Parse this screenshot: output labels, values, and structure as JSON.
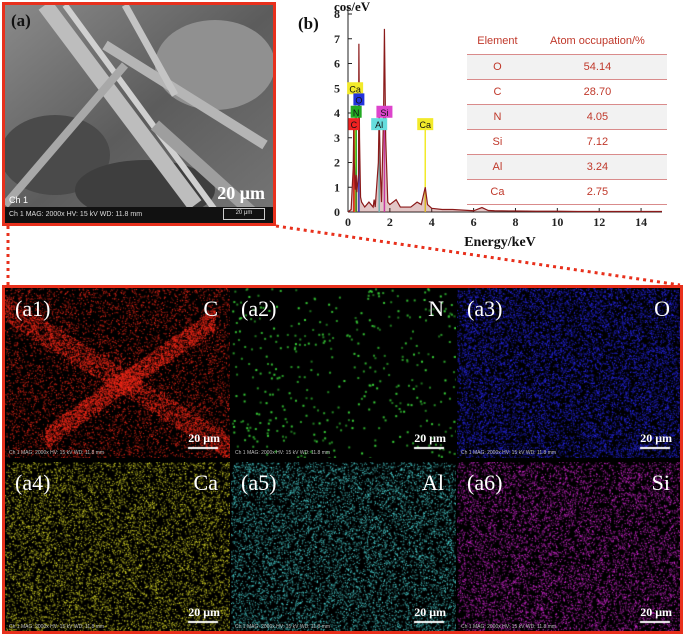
{
  "sem": {
    "label": "(a)",
    "scale_label": "20 μm",
    "channel_label": "Ch 1",
    "info_text": "Ch 1   MAG: 2000x   HV: 15 kV   WD: 11.8 mm",
    "scale_box_text": "20 μm",
    "frame_color": "#e8301c"
  },
  "chart_data": {
    "type": "line",
    "panel_label": "(b)",
    "title": "",
    "xlabel": "Energy/keV",
    "ylabel": "cos/eV",
    "xlim": [
      0,
      15
    ],
    "ylim": [
      0,
      8
    ],
    "xticks": [
      0,
      2,
      4,
      6,
      8,
      10,
      12,
      14
    ],
    "yticks": [
      0,
      1,
      2,
      3,
      4,
      5,
      6,
      7,
      8
    ],
    "grid": false,
    "line_color": "#8b1a1a",
    "series": [
      {
        "x": [
          0,
          0.15,
          0.25,
          0.28,
          0.3,
          0.35,
          0.39,
          0.42,
          0.5,
          0.52,
          0.55,
          0.6,
          0.65,
          0.8,
          1.0,
          1.2,
          1.25,
          1.3,
          1.45,
          1.49,
          1.55,
          1.6,
          1.7,
          1.74,
          1.8,
          1.9,
          2.0,
          2.3,
          2.5,
          3.0,
          3.3,
          3.5,
          3.69,
          3.8,
          4.0,
          4.5,
          5.0,
          6.0,
          6.4,
          6.7,
          7.0,
          8.0,
          9.0,
          10.0,
          11.0,
          12.0,
          13.0,
          14.0,
          15.0
        ],
        "y": [
          0,
          0.1,
          1.8,
          3.6,
          2.0,
          0.9,
          1.5,
          0.8,
          1.5,
          6.8,
          3.0,
          0.6,
          0.4,
          0.2,
          0.4,
          0.2,
          0.5,
          0.2,
          2.0,
          4.1,
          1.5,
          0.4,
          4.0,
          7.4,
          3.0,
          0.4,
          0.3,
          0.5,
          0.2,
          0.2,
          0.4,
          0.3,
          1.0,
          0.3,
          0.15,
          0.1,
          0.1,
          0.05,
          0.18,
          0.06,
          0.05,
          0.04,
          0.03,
          0.03,
          0.02,
          0.02,
          0.02,
          0.02,
          0.02
        ]
      }
    ],
    "peak_markers": [
      {
        "element": "Ca",
        "x": 0.34,
        "y_top": 4.9,
        "label_y": 5.0,
        "color": "#f2ea2a"
      },
      {
        "element": "O",
        "x": 0.52,
        "y_top": 4.4,
        "label_y": 4.55,
        "color": "#2233dd"
      },
      {
        "element": "N",
        "x": 0.39,
        "y_top": 3.9,
        "label_y": 4.05,
        "color": "#22aa22"
      },
      {
        "element": "C",
        "x": 0.28,
        "y_top": 3.4,
        "label_y": 3.55,
        "color": "#ee2222"
      },
      {
        "element": "Al",
        "x": 1.49,
        "y_top": 3.4,
        "label_y": 3.55,
        "color": "#66dddd"
      },
      {
        "element": "Si",
        "x": 1.74,
        "y_top": 3.9,
        "label_y": 4.05,
        "color": "#dd44cc"
      },
      {
        "element": "Ca",
        "x": 3.69,
        "y_top": 3.4,
        "label_y": 3.55,
        "color": "#f2ea2a"
      }
    ],
    "table": {
      "headers": [
        "Element",
        "Atom occupation/%"
      ],
      "rows": [
        [
          "O",
          "54.14"
        ],
        [
          "C",
          "28.70"
        ],
        [
          "N",
          "4.05"
        ],
        [
          "Si",
          "7.12"
        ],
        [
          "Al",
          "3.24"
        ],
        [
          "Ca",
          "2.75"
        ]
      ]
    }
  },
  "maps": [
    {
      "label": "(a1)",
      "element": "C",
      "scale": "20 μm",
      "color": "#ff2a1a",
      "density": 0.35,
      "fiber": true
    },
    {
      "label": "(a2)",
      "element": "N",
      "scale": "20 μm",
      "color": "#39d639",
      "density": 0.02,
      "fiber": false
    },
    {
      "label": "(a3)",
      "element": "O",
      "scale": "20 μm",
      "color": "#2a2aff",
      "density": 0.6,
      "fiber": false
    },
    {
      "label": "(a4)",
      "element": "Ca",
      "scale": "20 μm",
      "color": "#e6e62a",
      "density": 0.45,
      "fiber": false
    },
    {
      "label": "(a5)",
      "element": "Al",
      "scale": "20 μm",
      "color": "#4fe0e0",
      "density": 0.45,
      "fiber": false
    },
    {
      "label": "(a6)",
      "element": "Si",
      "scale": "20 μm",
      "color": "#e02ae0",
      "density": 0.45,
      "fiber": false
    }
  ],
  "map_info_text": "Ch 1   MAG: 2000x   HV: 15 kV   WD: 11.8 mm"
}
